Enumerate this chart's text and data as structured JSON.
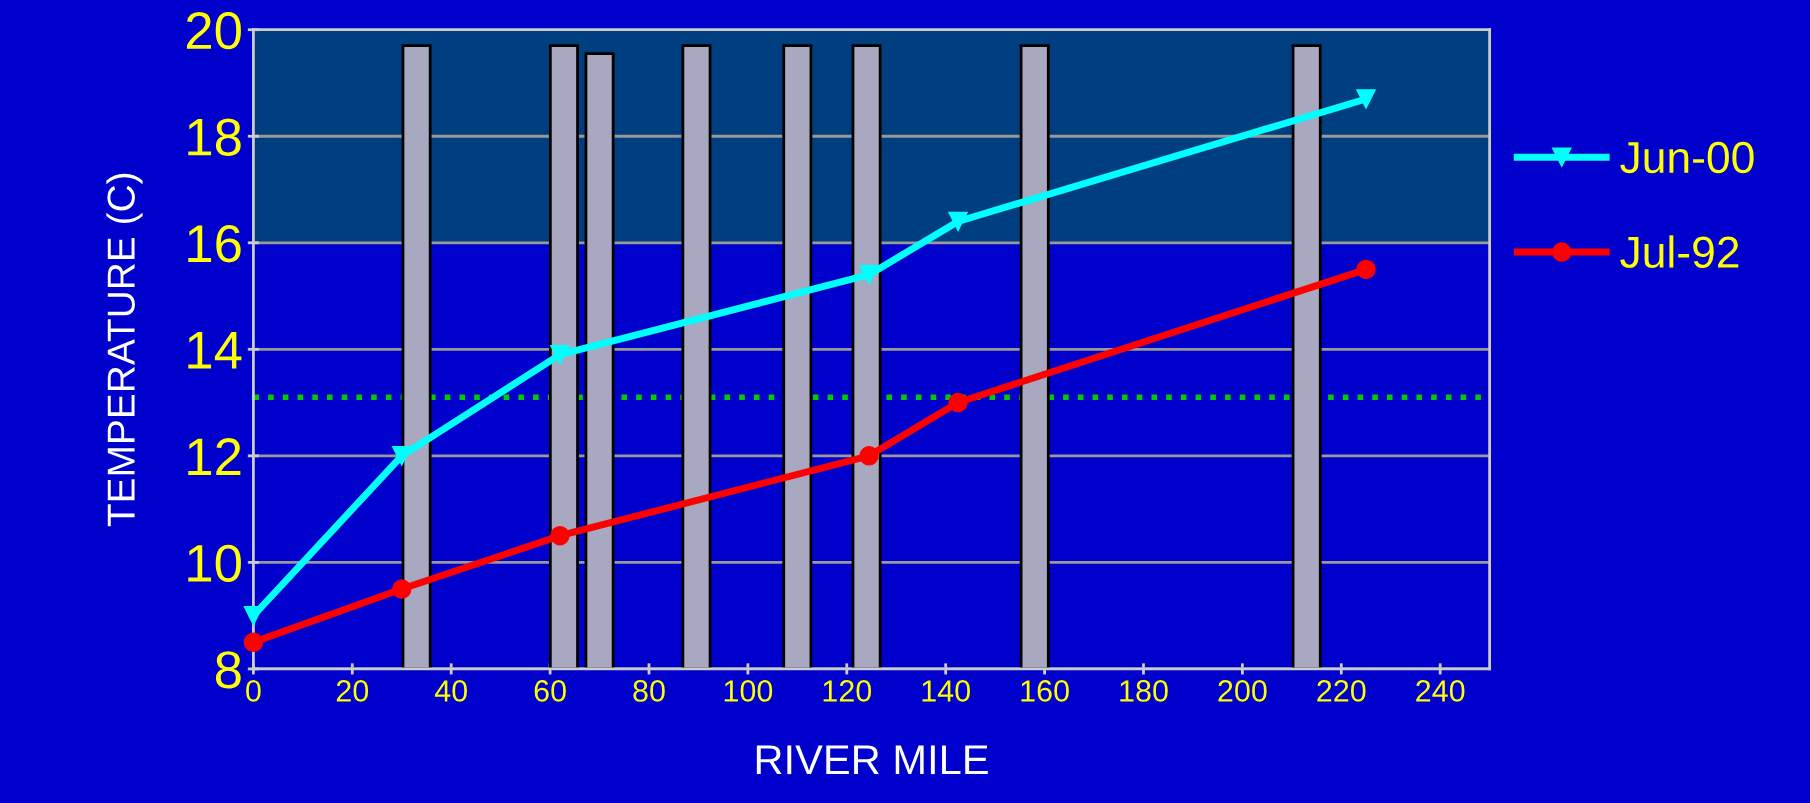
{
  "chart_data": {
    "type": "line",
    "xlabel": "RIVER MILE",
    "ylabel": "TEMPERATURE (C)",
    "xlim": [
      0,
      250
    ],
    "xticks": [
      0,
      20,
      40,
      60,
      80,
      100,
      120,
      140,
      160,
      180,
      200,
      220,
      240
    ],
    "ylim": [
      8,
      20
    ],
    "yticks": [
      8,
      10,
      12,
      14,
      16,
      18,
      20
    ],
    "grid": "y",
    "legend": "right",
    "bands": [
      {
        "axis": "y",
        "from": 16,
        "to": 20,
        "color": "#003f7f"
      }
    ],
    "ref_lines": [
      {
        "axis": "y",
        "value": 13.1,
        "color": "#00cc00",
        "line_style": "dotted"
      }
    ],
    "series": [
      {
        "type": "bar",
        "color": "#a8a8c0",
        "x": [
          33,
          62.8,
          70,
          89.6,
          110,
          124,
          158,
          213
        ],
        "values": [
          19.7,
          19.7,
          19.55,
          19.7,
          19.7,
          19.7,
          19.7,
          19.7
        ]
      },
      {
        "name": "Jun-00",
        "color": "#00ffff",
        "marker": "triangle",
        "x": [
          0,
          30,
          62,
          124.5,
          142.5,
          225
        ],
        "values": [
          9.0,
          12.0,
          13.9,
          15.4,
          16.4,
          18.7
        ]
      },
      {
        "name": "Jul-92",
        "color": "#ff0000",
        "marker": "circle",
        "x": [
          0,
          30,
          62,
          124.5,
          142.5,
          225
        ],
        "values": [
          8.5,
          9.5,
          10.5,
          12.0,
          13.0,
          15.5
        ]
      }
    ]
  }
}
